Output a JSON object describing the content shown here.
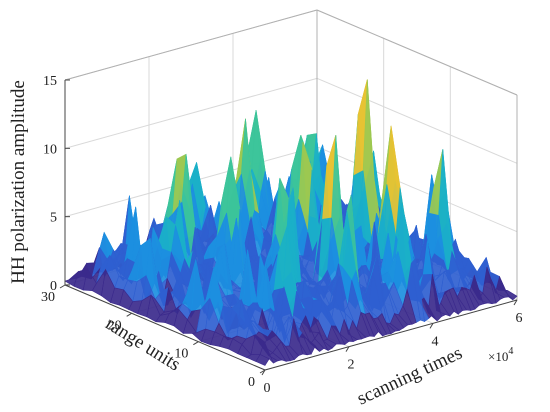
{
  "chart_data": {
    "type": "surface",
    "zlabel": "HH polarization amplitude",
    "ylabel": "range units",
    "xlabel": "scanning times",
    "x_exponent_label": "×10",
    "x_exponent_power": "4",
    "zlim": [
      0,
      15
    ],
    "ylim": [
      0,
      30
    ],
    "xlim": [
      0,
      6
    ],
    "x_scale_factor": 10000,
    "z_ticks": [
      "0",
      "5",
      "10",
      "15"
    ],
    "y_ticks": [
      "0",
      "10",
      "20",
      "30"
    ],
    "x_ticks": [
      "0",
      "2",
      "4",
      "6"
    ],
    "grid": true,
    "colormap": "parula",
    "colors": [
      "#3b2a8c",
      "#2f5fd0",
      "#1c8fe0",
      "#1ab0c8",
      "#3cc49a",
      "#9cc850",
      "#e6c232"
    ],
    "surface_peaks": [
      {
        "x": 0.9,
        "y": 20,
        "z": 5.5
      },
      {
        "x": 1.4,
        "y": 6,
        "z": 6.5
      },
      {
        "x": 1.8,
        "y": 24,
        "z": 9.0
      },
      {
        "x": 2.0,
        "y": 18,
        "z": 7.5
      },
      {
        "x": 2.3,
        "y": 12,
        "z": 8.0
      },
      {
        "x": 2.6,
        "y": 4,
        "z": 6.0
      },
      {
        "x": 2.7,
        "y": 28,
        "z": 7.0
      },
      {
        "x": 3.0,
        "y": 22,
        "z": 9.5
      },
      {
        "x": 3.2,
        "y": 10,
        "z": 10.5
      },
      {
        "x": 3.5,
        "y": 16,
        "z": 8.5
      },
      {
        "x": 3.7,
        "y": 2,
        "z": 7.0
      },
      {
        "x": 3.9,
        "y": 26,
        "z": 8.0
      },
      {
        "x": 4.1,
        "y": 20,
        "z": 9.0
      },
      {
        "x": 4.3,
        "y": 8,
        "z": 12.0
      },
      {
        "x": 4.6,
        "y": 14,
        "z": 13.0
      },
      {
        "x": 4.9,
        "y": 24,
        "z": 7.0
      },
      {
        "x": 5.1,
        "y": 6,
        "z": 8.0
      },
      {
        "x": 5.4,
        "y": 18,
        "z": 6.5
      },
      {
        "x": 5.7,
        "y": 28,
        "z": 5.5
      },
      {
        "x": 5.8,
        "y": 10,
        "z": 6.0
      }
    ]
  }
}
